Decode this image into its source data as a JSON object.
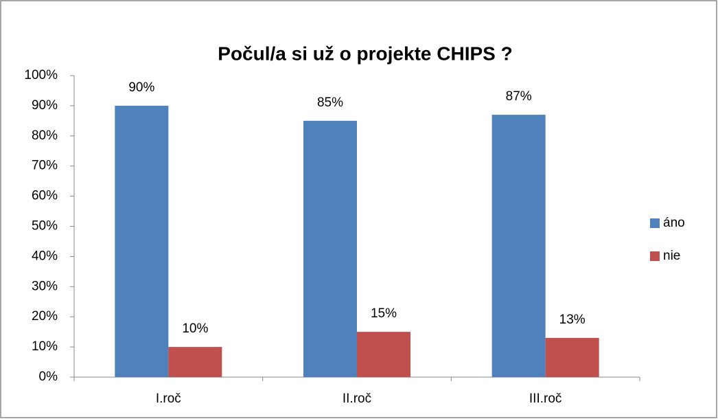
{
  "chart_data": {
    "type": "bar",
    "title": "Počul/a si už o projekte CHIPS ?",
    "categories": [
      "I.roč",
      "II.roč",
      "III.roč"
    ],
    "series": [
      {
        "name": "áno",
        "color": "#4f81bd",
        "values": [
          90,
          85,
          87
        ],
        "value_labels": [
          "90%",
          "85%",
          "87%"
        ]
      },
      {
        "name": "nie",
        "color": "#c0504d",
        "values": [
          10,
          15,
          13
        ],
        "value_labels": [
          "10%",
          "15%",
          "13%"
        ]
      }
    ],
    "ylim": [
      0,
      100
    ],
    "yticks": [
      {
        "value": 0,
        "label": "0%"
      },
      {
        "value": 10,
        "label": "10%"
      },
      {
        "value": 20,
        "label": "20%"
      },
      {
        "value": 30,
        "label": "30%"
      },
      {
        "value": 40,
        "label": "40%"
      },
      {
        "value": 50,
        "label": "50%"
      },
      {
        "value": 60,
        "label": "60%"
      },
      {
        "value": 70,
        "label": "70%"
      },
      {
        "value": 80,
        "label": "80%"
      },
      {
        "value": 90,
        "label": "90%"
      },
      {
        "value": 100,
        "label": "100%"
      }
    ],
    "grid": false,
    "legend": "right"
  }
}
